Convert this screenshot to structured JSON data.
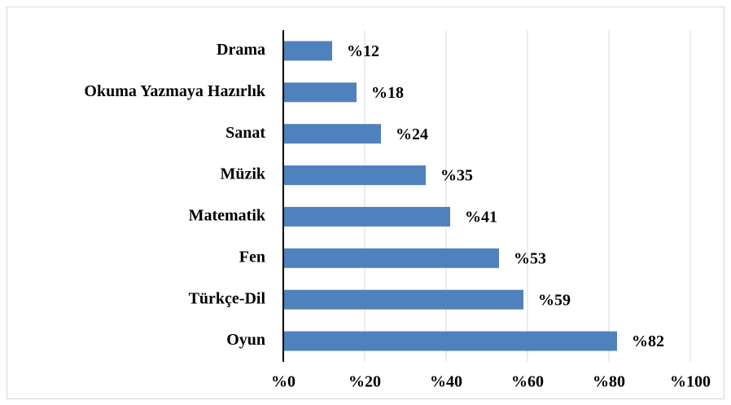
{
  "chart_data": {
    "type": "bar",
    "orientation": "horizontal",
    "categories": [
      "Drama",
      "Okuma Yazmaya Hazırlık",
      "Sanat",
      "Müzik",
      "Matematik",
      "Fen",
      "Türkçe-Dil",
      "Oyun"
    ],
    "values": [
      12,
      18,
      24,
      35,
      41,
      53,
      59,
      82
    ],
    "value_labels": [
      "%12",
      "%18",
      "%24",
      "%35",
      "%41",
      "%53",
      "%59",
      "%82"
    ],
    "color": "#4f81bd",
    "xlim": [
      0,
      100
    ],
    "xticks": [
      {
        "value": 0,
        "label": "%0"
      },
      {
        "value": 20,
        "label": "%20"
      },
      {
        "value": 40,
        "label": "%40"
      },
      {
        "value": 60,
        "label": "%60"
      },
      {
        "value": 80,
        "label": "%80"
      },
      {
        "value": 100,
        "label": "%100"
      }
    ],
    "grid": true
  }
}
